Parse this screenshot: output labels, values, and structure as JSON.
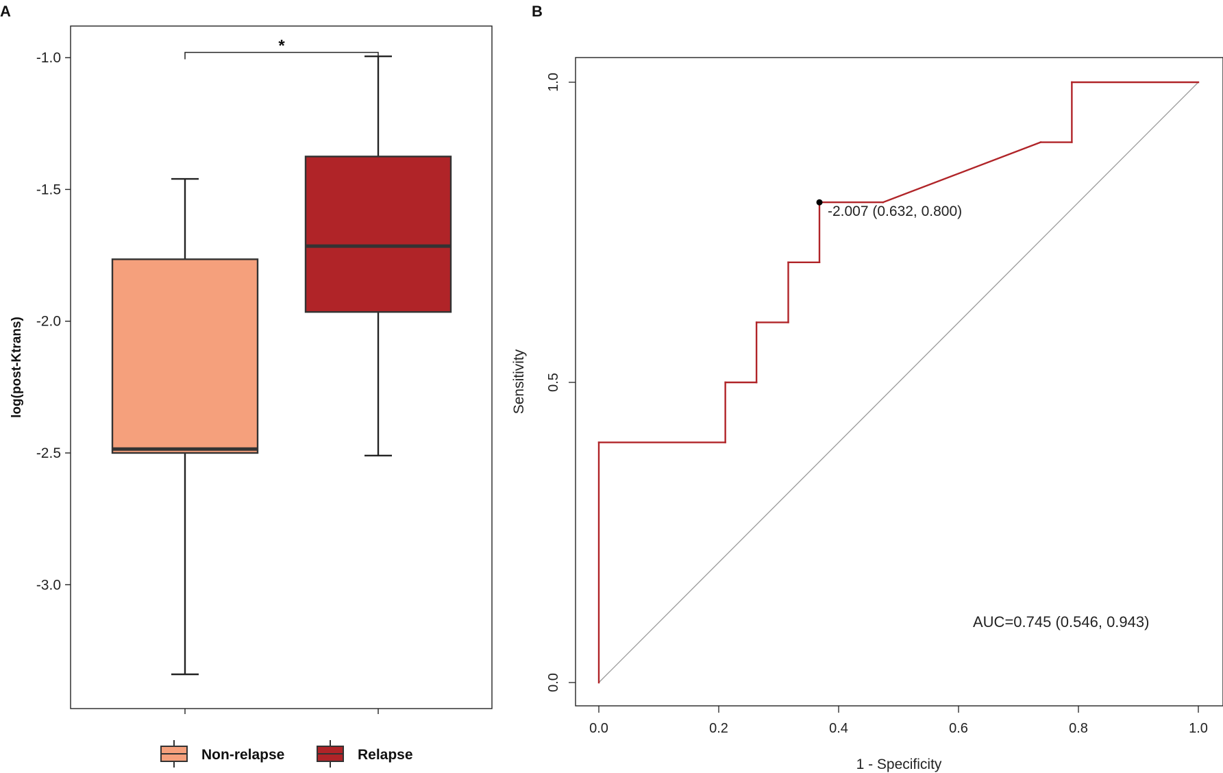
{
  "panel_labels": {
    "a": "A",
    "b": "B"
  },
  "colors": {
    "non_relapse": "#F5A07C",
    "relapse": "#B02428",
    "roc_line": "#B02428",
    "axis": "#222222",
    "diagonal": "#9a9a9a"
  },
  "chart_data": [
    {
      "type": "box",
      "panel": "A",
      "ylabel": "log(post-Ktrans)",
      "xlabel": "",
      "ylim": [
        -3.47,
        -0.88
      ],
      "yticks": [
        -1.0,
        -1.5,
        -2.0,
        -2.5,
        -3.0
      ],
      "ytick_labels": [
        "-1.0",
        "-1.5",
        "-2.0",
        "-2.5",
        "-3.0"
      ],
      "groups": [
        {
          "name": "Non-relapse",
          "min": -3.34,
          "q1": -2.5,
          "median": -2.485,
          "q3": -1.765,
          "max": -1.46
        },
        {
          "name": "Relapse",
          "min": -2.51,
          "q1": -1.965,
          "median": -1.715,
          "q3": -1.375,
          "max": -0.995
        }
      ],
      "significance": {
        "label": "*",
        "y": -0.98,
        "between": [
          "Non-relapse",
          "Relapse"
        ]
      },
      "legend": {
        "position": "bottom",
        "entries": [
          "Non-relapse",
          "Relapse"
        ]
      }
    },
    {
      "type": "line",
      "panel": "B",
      "title": "",
      "xlabel": "1 - Specificity",
      "ylabel": "Sensitivity",
      "xlim": [
        -0.04,
        1.04
      ],
      "ylim": [
        -0.04,
        1.04
      ],
      "xticks": [
        0.0,
        0.2,
        0.4,
        0.6,
        0.8,
        1.0
      ],
      "xtick_labels": [
        "0.0",
        "0.2",
        "0.4",
        "0.6",
        "0.8",
        "1.0"
      ],
      "yticks": [
        0.0,
        0.5,
        1.0
      ],
      "ytick_labels": [
        "0.0",
        "0.5",
        "1.0"
      ],
      "series": [
        {
          "name": "ROC",
          "x": [
            0,
            0,
            0.211,
            0.211,
            0.263,
            0.263,
            0.316,
            0.316,
            0.368,
            0.368,
            0.474,
            0.737,
            0.789,
            0.789,
            1.0
          ],
          "y": [
            0,
            0.4,
            0.4,
            0.5,
            0.5,
            0.6,
            0.6,
            0.7,
            0.7,
            0.8,
            0.8,
            0.9,
            0.9,
            1.0,
            1.0
          ]
        }
      ],
      "reference_line": {
        "x": [
          0,
          1
        ],
        "y": [
          0,
          1
        ]
      },
      "cutoff_point": {
        "x": 0.368,
        "y": 0.8,
        "label": "-2.007 (0.632, 0.800)"
      },
      "auc_text": "AUC=0.745 (0.546, 0.943)"
    }
  ]
}
